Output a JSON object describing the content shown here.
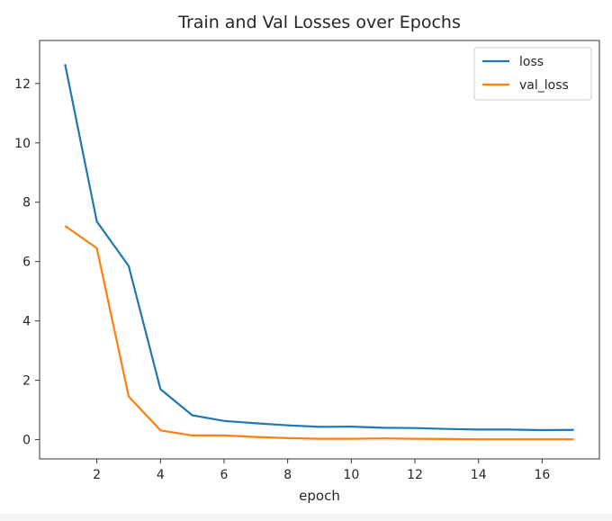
{
  "chart_data": {
    "type": "line",
    "title": "Train and Val Losses over Epochs",
    "xlabel": "epoch",
    "ylabel": "",
    "x": [
      1,
      2,
      3,
      4,
      5,
      6,
      7,
      8,
      9,
      10,
      11,
      12,
      13,
      14,
      15,
      16,
      17
    ],
    "xlim": [
      0.2,
      17.8
    ],
    "ylim": [
      -0.65,
      13.45
    ],
    "xticks": [
      2,
      4,
      6,
      8,
      10,
      12,
      14,
      16
    ],
    "yticks": [
      0,
      2,
      4,
      6,
      8,
      10,
      12
    ],
    "grid": false,
    "legend_position": "top-right",
    "series": [
      {
        "name": "loss",
        "color": "#1f77b4",
        "values": [
          12.65,
          7.35,
          5.85,
          1.7,
          0.82,
          0.63,
          0.55,
          0.48,
          0.43,
          0.44,
          0.4,
          0.39,
          0.36,
          0.34,
          0.34,
          0.32,
          0.33
        ]
      },
      {
        "name": "val_loss",
        "color": "#ff7f0e",
        "values": [
          7.2,
          6.45,
          1.45,
          0.31,
          0.14,
          0.14,
          0.09,
          0.05,
          0.03,
          0.03,
          0.04,
          0.03,
          0.02,
          0.01,
          0.01,
          0.01,
          0.01
        ]
      }
    ]
  }
}
